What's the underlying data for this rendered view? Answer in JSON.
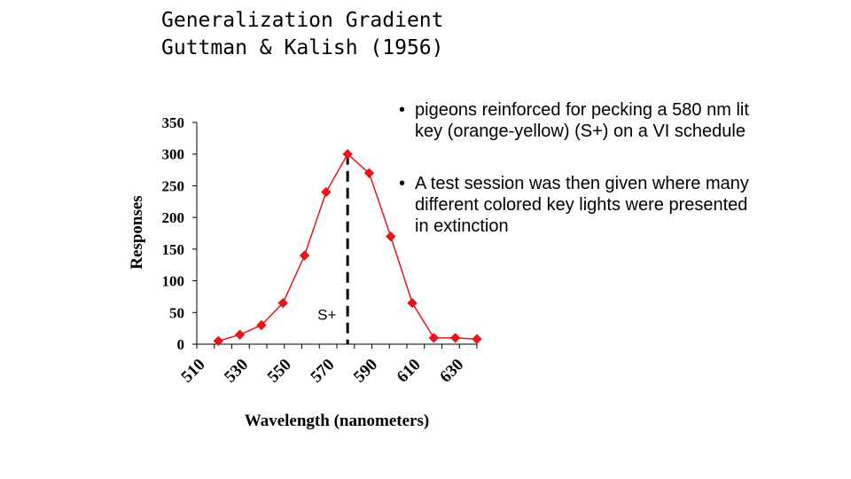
{
  "title": {
    "line1": "Generalization Gradient",
    "line2": "Guttman & Kalish (1956)"
  },
  "bullets": [
    {
      "bullet": "•",
      "text": "pigeons reinforced for pecking a 580 nm lit key (orange-yellow) (S+) on a VI schedule"
    },
    {
      "bullet": "•",
      "text": "A test session was then given where many different colored key lights were presented in extinction"
    }
  ],
  "colors": {
    "series": "#e8151b",
    "axis": "#000000",
    "reference_line": "#000000"
  },
  "chart_data": {
    "type": "line",
    "title": "",
    "xlabel": "Wavelength (nanometers)",
    "ylabel": "Responses",
    "xlim": [
      510,
      640
    ],
    "ylim": [
      0,
      350
    ],
    "yticks": [
      0,
      50,
      100,
      150,
      200,
      250,
      300,
      350
    ],
    "xtick_labels": [
      "510",
      "530",
      "550",
      "570",
      "590",
      "610",
      "630"
    ],
    "grid": false,
    "legend": "none",
    "series": [
      {
        "x": [
          520,
          530,
          540,
          550,
          560,
          570,
          580,
          590,
          600,
          610,
          620,
          630,
          640
        ],
        "values": [
          5,
          15,
          30,
          65,
          140,
          240,
          300,
          270,
          170,
          65,
          10,
          10,
          8
        ]
      }
    ],
    "annotations": [
      {
        "type": "vertical-dashed-line",
        "x": 580,
        "label": "S+"
      }
    ]
  }
}
